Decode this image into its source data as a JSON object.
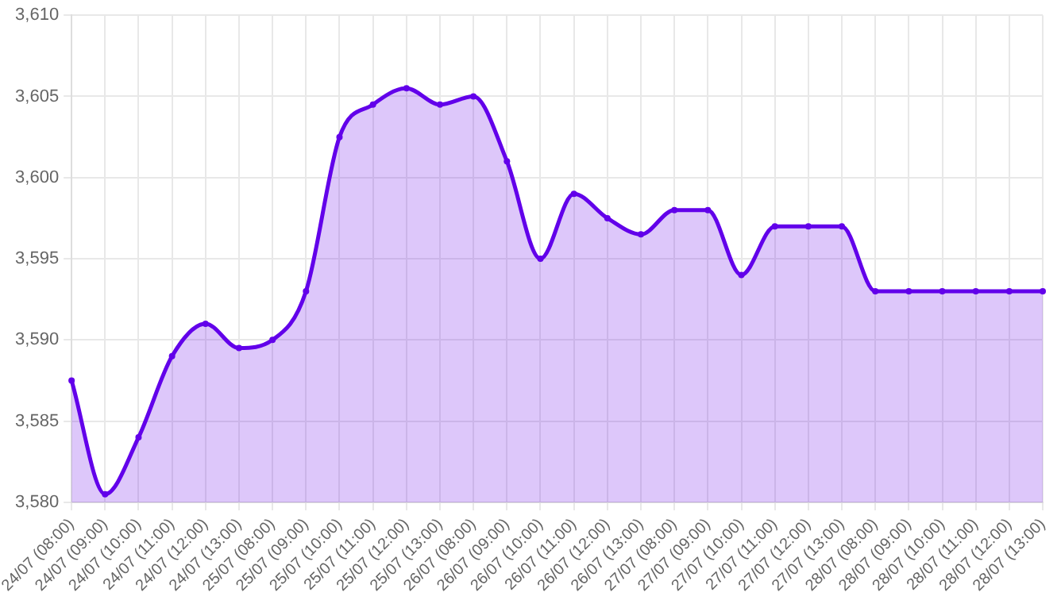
{
  "chart_data": {
    "type": "area",
    "categories": [
      "24/07 (08:00)",
      "24/07 (09:00)",
      "24/07 (10:00)",
      "24/07 (11:00)",
      "24/07 (12:00)",
      "24/07 (13:00)",
      "25/07 (08:00)",
      "25/07 (09:00)",
      "25/07 (10:00)",
      "25/07 (11:00)",
      "25/07 (12:00)",
      "25/07 (13:00)",
      "26/07 (08:00)",
      "26/07 (09:00)",
      "26/07 (10:00)",
      "26/07 (11:00)",
      "26/07 (12:00)",
      "26/07 (13:00)",
      "27/07 (08:00)",
      "27/07 (09:00)",
      "27/07 (10:00)",
      "27/07 (11:00)",
      "27/07 (12:00)",
      "27/07 (13:00)",
      "28/07 (08:00)",
      "28/07 (09:00)",
      "28/07 (10:00)",
      "28/07 (11:00)",
      "28/07 (12:00)",
      "28/07 (13:00)"
    ],
    "series": [
      {
        "color": "#6200ea",
        "values": [
          3587.5,
          3580.5,
          3584,
          3589,
          3591,
          3589.5,
          3590,
          3593,
          3602.5,
          3604.5,
          3605.5,
          3604.5,
          3605,
          3601,
          3595,
          3599,
          3597.5,
          3596.5,
          3598,
          3598,
          3594,
          3597,
          3597,
          3597,
          3593,
          3593,
          3593,
          3593,
          3593,
          3593
        ]
      }
    ],
    "ylim": [
      3580,
      3610
    ],
    "yticks": [
      {
        "value": 3580,
        "label": "3,580"
      },
      {
        "value": 3585,
        "label": "3,585"
      },
      {
        "value": 3590,
        "label": "3,590"
      },
      {
        "value": 3595,
        "label": "3,595"
      },
      {
        "value": 3600,
        "label": "3,600"
      },
      {
        "value": 3605,
        "label": "3,605"
      },
      {
        "value": 3610,
        "label": "3,610"
      }
    ],
    "grid": true,
    "legend": false,
    "marker": "circle",
    "line_style": "solid"
  }
}
